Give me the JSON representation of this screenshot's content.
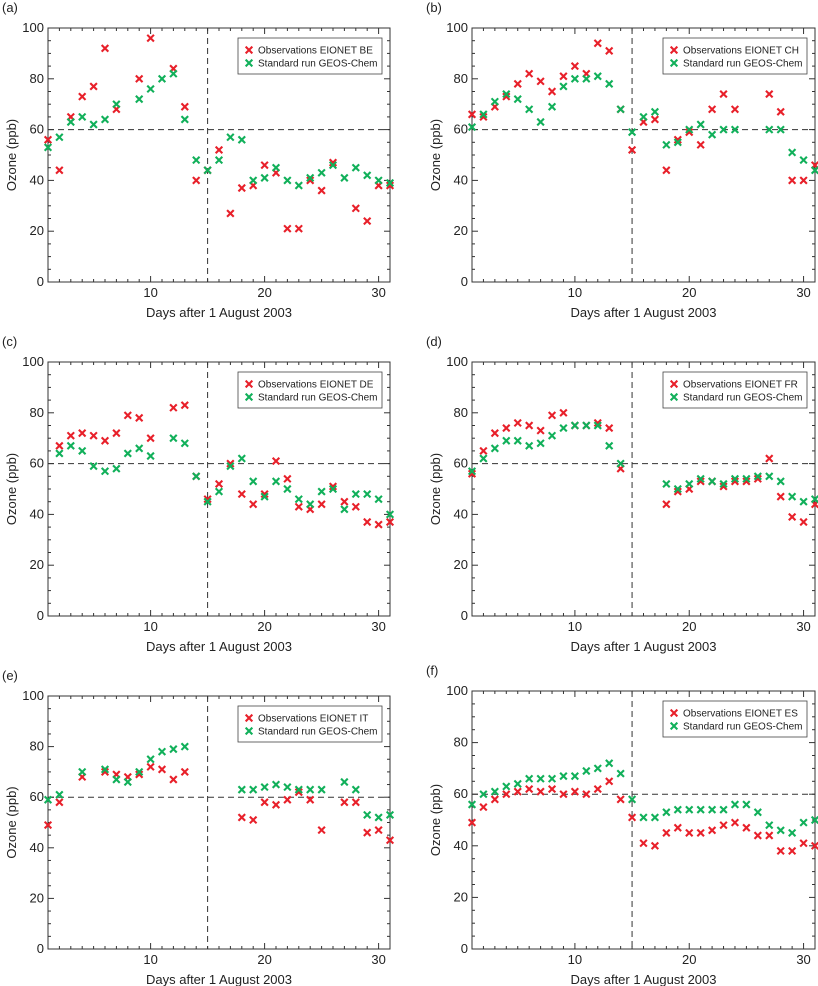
{
  "figure": {
    "background": "#ffffff"
  },
  "colors": {
    "observations": "#e8202a",
    "model": "#11b05a",
    "reference_line": "#333333",
    "axis": "#333333"
  },
  "chart_data": [
    {
      "type": "scatter",
      "panel_label": "(a)",
      "xlabel": "Days after 1 August 2003",
      "ylabel": "Ozone (ppb)",
      "xlim": [
        1,
        31
      ],
      "ylim": [
        0,
        100
      ],
      "xticks": [
        10,
        20,
        30
      ],
      "yticks": [
        0,
        20,
        40,
        60,
        80,
        100
      ],
      "legend_position": "top-right",
      "reference_lines": {
        "x": 15,
        "y": 60
      },
      "series": [
        {
          "name": "Observations EIONET BE",
          "color": "#e8202a",
          "marker": "x",
          "x": [
            1,
            2,
            3,
            4,
            5,
            6,
            7,
            9,
            10,
            12,
            13,
            14,
            15,
            16,
            17,
            18,
            19,
            20,
            21,
            22,
            23,
            24,
            25,
            26,
            28,
            29,
            30,
            31
          ],
          "y": [
            56,
            44,
            65,
            73,
            77,
            92,
            68,
            80,
            96,
            84,
            69,
            40,
            44,
            52,
            27,
            37,
            38,
            46,
            43,
            21,
            21,
            40,
            36,
            47,
            29,
            24,
            38,
            38
          ]
        },
        {
          "name": "Standard run GEOS-Chem",
          "color": "#11b05a",
          "marker": "x",
          "x": [
            1,
            2,
            3,
            4,
            5,
            6,
            7,
            9,
            10,
            11,
            12,
            13,
            14,
            15,
            16,
            17,
            18,
            19,
            20,
            21,
            22,
            23,
            24,
            25,
            26,
            27,
            28,
            29,
            30,
            31
          ],
          "y": [
            53,
            57,
            63,
            65,
            62,
            64,
            70,
            72,
            76,
            80,
            82,
            64,
            48,
            44,
            48,
            57,
            56,
            40,
            41,
            45,
            40,
            38,
            41,
            43,
            46,
            41,
            45,
            42,
            40,
            39
          ]
        }
      ]
    },
    {
      "type": "scatter",
      "panel_label": "(b)",
      "xlabel": "Days after 1 August 2003",
      "ylabel": "Ozone (ppb)",
      "xlim": [
        1,
        31
      ],
      "ylim": [
        0,
        100
      ],
      "xticks": [
        10,
        20,
        30
      ],
      "yticks": [
        0,
        20,
        40,
        60,
        80,
        100
      ],
      "legend_position": "top-right",
      "reference_lines": {
        "x": 15,
        "y": 60
      },
      "series": [
        {
          "name": "Observations EIONET CH",
          "color": "#e8202a",
          "marker": "x",
          "x": [
            1,
            2,
            3,
            4,
            5,
            6,
            7,
            8,
            9,
            10,
            11,
            12,
            13,
            14,
            15,
            16,
            17,
            18,
            19,
            20,
            21,
            22,
            23,
            24,
            27,
            28,
            29,
            30,
            31
          ],
          "y": [
            66,
            65,
            69,
            73,
            78,
            82,
            79,
            75,
            81,
            85,
            82,
            94,
            91,
            68,
            52,
            63,
            64,
            44,
            56,
            59,
            54,
            68,
            74,
            68,
            74,
            67,
            40,
            40,
            46
          ]
        },
        {
          "name": "Standard run GEOS-Chem",
          "color": "#11b05a",
          "marker": "x",
          "x": [
            1,
            2,
            3,
            4,
            5,
            6,
            7,
            8,
            9,
            10,
            11,
            12,
            13,
            14,
            15,
            16,
            17,
            18,
            19,
            20,
            21,
            22,
            23,
            24,
            27,
            28,
            29,
            30,
            31
          ],
          "y": [
            61,
            66,
            71,
            74,
            72,
            68,
            63,
            69,
            77,
            80,
            80,
            81,
            78,
            68,
            59,
            65,
            67,
            54,
            55,
            60,
            62,
            58,
            60,
            60,
            60,
            60,
            51,
            48,
            44
          ]
        }
      ]
    },
    {
      "type": "scatter",
      "panel_label": "(c)",
      "xlabel": "Days after 1 August 2003",
      "ylabel": "Ozone (ppb)",
      "xlim": [
        1,
        31
      ],
      "ylim": [
        0,
        100
      ],
      "xticks": [
        10,
        20,
        30
      ],
      "yticks": [
        0,
        20,
        40,
        60,
        80,
        100
      ],
      "legend_position": "top-right",
      "reference_lines": {
        "x": 15,
        "y": 60
      },
      "series": [
        {
          "name": "Observations EIONET DE",
          "color": "#e8202a",
          "marker": "x",
          "x": [
            2,
            3,
            4,
            5,
            6,
            7,
            8,
            9,
            10,
            12,
            13,
            14,
            15,
            16,
            17,
            18,
            19,
            20,
            21,
            22,
            23,
            24,
            25,
            26,
            27,
            28,
            29,
            30,
            31
          ],
          "y": [
            67,
            71,
            72,
            71,
            69,
            72,
            79,
            78,
            70,
            82,
            83,
            55,
            46,
            52,
            60,
            48,
            44,
            48,
            61,
            54,
            43,
            42,
            44,
            51,
            45,
            43,
            37,
            36,
            37
          ]
        },
        {
          "name": "Standard run GEOS-Chem",
          "color": "#11b05a",
          "marker": "x",
          "x": [
            2,
            3,
            4,
            5,
            6,
            7,
            8,
            9,
            10,
            12,
            13,
            14,
            15,
            16,
            17,
            18,
            19,
            20,
            21,
            22,
            23,
            24,
            25,
            26,
            27,
            28,
            29,
            30,
            31
          ],
          "y": [
            64,
            67,
            65,
            59,
            57,
            58,
            64,
            66,
            63,
            70,
            68,
            55,
            45,
            49,
            59,
            62,
            53,
            47,
            53,
            50,
            46,
            44,
            49,
            50,
            42,
            48,
            48,
            46,
            40
          ]
        }
      ]
    },
    {
      "type": "scatter",
      "panel_label": "(d)",
      "xlabel": "Days after 1 August 2003",
      "ylabel": "Ozone (ppb)",
      "xlim": [
        1,
        31
      ],
      "ylim": [
        0,
        100
      ],
      "xticks": [
        10,
        20,
        30
      ],
      "yticks": [
        0,
        20,
        40,
        60,
        80,
        100
      ],
      "legend_position": "top-right",
      "reference_lines": {
        "x": 15,
        "y": 60
      },
      "series": [
        {
          "name": "Observations EIONET FR",
          "color": "#e8202a",
          "marker": "x",
          "x": [
            1,
            2,
            3,
            4,
            5,
            6,
            7,
            8,
            9,
            10,
            11,
            12,
            13,
            14,
            18,
            19,
            20,
            21,
            22,
            23,
            24,
            25,
            26,
            27,
            28,
            29,
            30,
            31
          ],
          "y": [
            56,
            65,
            72,
            74,
            76,
            75,
            73,
            79,
            80,
            75,
            75,
            76,
            74,
            58,
            44,
            49,
            50,
            53,
            53,
            51,
            53,
            53,
            54,
            62,
            47,
            39,
            37,
            44
          ]
        },
        {
          "name": "Standard run GEOS-Chem",
          "color": "#11b05a",
          "marker": "x",
          "x": [
            1,
            2,
            3,
            4,
            5,
            6,
            7,
            8,
            9,
            10,
            11,
            12,
            13,
            14,
            18,
            19,
            20,
            21,
            22,
            23,
            24,
            25,
            26,
            27,
            28,
            29,
            30,
            31
          ],
          "y": [
            57,
            62,
            66,
            69,
            69,
            67,
            68,
            71,
            74,
            75,
            75,
            75,
            67,
            60,
            52,
            50,
            52,
            54,
            53,
            52,
            54,
            54,
            55,
            55,
            53,
            47,
            45,
            46
          ]
        }
      ]
    },
    {
      "type": "scatter",
      "panel_label": "(e)",
      "xlabel": "Days after 1 August 2003",
      "ylabel": "Ozone (ppb)",
      "xlim": [
        1,
        31
      ],
      "ylim": [
        0,
        100
      ],
      "xticks": [
        10,
        20,
        30
      ],
      "yticks": [
        0,
        20,
        40,
        60,
        80,
        100
      ],
      "legend_position": "top-right",
      "reference_lines": {
        "x": 15,
        "y": 60
      },
      "series": [
        {
          "name": "Observations EIONET IT",
          "color": "#e8202a",
          "marker": "x",
          "x": [
            1,
            2,
            4,
            6,
            7,
            8,
            9,
            10,
            11,
            12,
            13,
            18,
            19,
            20,
            21,
            22,
            23,
            24,
            25,
            27,
            28,
            29,
            30,
            31
          ],
          "y": [
            49,
            58,
            68,
            70,
            69,
            68,
            69,
            72,
            71,
            67,
            70,
            52,
            51,
            58,
            57,
            59,
            62,
            59,
            47,
            58,
            58,
            46,
            47,
            43
          ]
        },
        {
          "name": "Standard run GEOS-Chem",
          "color": "#11b05a",
          "marker": "x",
          "x": [
            1,
            2,
            4,
            6,
            7,
            8,
            9,
            10,
            11,
            12,
            13,
            18,
            19,
            20,
            21,
            22,
            23,
            24,
            25,
            27,
            28,
            29,
            30,
            31
          ],
          "y": [
            59,
            61,
            70,
            71,
            67,
            66,
            70,
            75,
            78,
            79,
            80,
            63,
            63,
            64,
            65,
            64,
            63,
            63,
            63,
            66,
            63,
            53,
            52,
            53
          ]
        }
      ]
    },
    {
      "type": "scatter",
      "panel_label": "(f)",
      "xlabel": "Days after 1 August 2003",
      "ylabel": "Ozone (ppb)",
      "xlim": [
        1,
        31
      ],
      "ylim": [
        0,
        100
      ],
      "xticks": [
        10,
        20,
        30
      ],
      "yticks": [
        0,
        20,
        40,
        60,
        80,
        100
      ],
      "legend_position": "top-right",
      "reference_lines": {
        "x": 15,
        "y": 60
      },
      "series": [
        {
          "name": "Observations EIONET ES",
          "color": "#e8202a",
          "marker": "x",
          "x": [
            1,
            2,
            3,
            4,
            5,
            6,
            7,
            8,
            9,
            10,
            11,
            12,
            13,
            14,
            15,
            16,
            17,
            18,
            19,
            20,
            21,
            22,
            23,
            24,
            25,
            26,
            27,
            28,
            29,
            30,
            31
          ],
          "y": [
            49,
            55,
            58,
            60,
            61,
            62,
            61,
            62,
            60,
            61,
            60,
            62,
            65,
            58,
            51,
            41,
            40,
            45,
            47,
            45,
            45,
            46,
            48,
            49,
            47,
            44,
            44,
            38,
            38,
            41,
            40
          ]
        },
        {
          "name": "Standard run GEOS-Chem",
          "color": "#11b05a",
          "marker": "x",
          "x": [
            1,
            2,
            3,
            4,
            5,
            6,
            7,
            8,
            9,
            10,
            11,
            12,
            13,
            14,
            15,
            16,
            17,
            18,
            19,
            20,
            21,
            22,
            23,
            24,
            25,
            26,
            27,
            28,
            29,
            30,
            31
          ],
          "y": [
            56,
            60,
            61,
            63,
            64,
            66,
            66,
            66,
            67,
            67,
            69,
            70,
            72,
            68,
            58,
            51,
            51,
            53,
            54,
            54,
            54,
            54,
            54,
            56,
            56,
            53,
            48,
            46,
            45,
            49,
            50
          ]
        }
      ]
    }
  ]
}
